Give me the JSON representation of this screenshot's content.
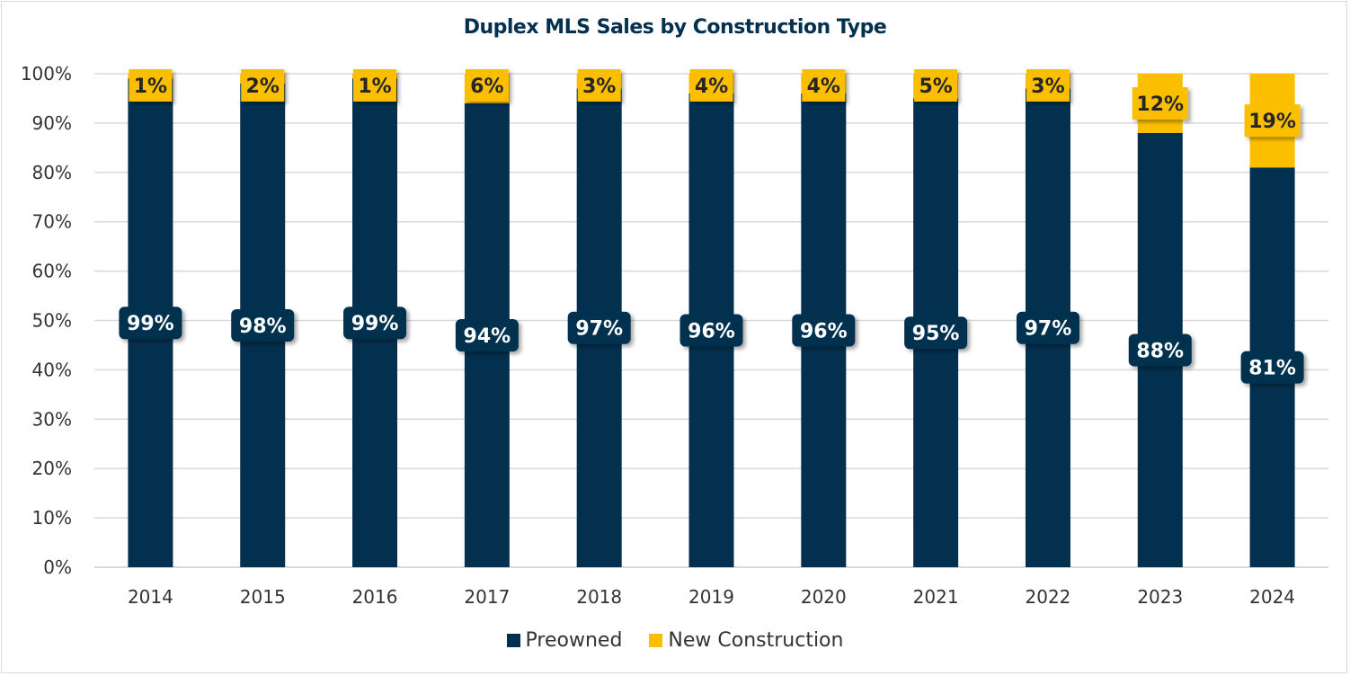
{
  "chart_data": {
    "type": "bar",
    "stacked": true,
    "title": "Duplex MLS Sales by Construction Type",
    "xlabel": "",
    "ylabel": "",
    "ylim": [
      0,
      100
    ],
    "yticks": [
      "0%",
      "10%",
      "20%",
      "30%",
      "40%",
      "50%",
      "60%",
      "70%",
      "80%",
      "90%",
      "100%"
    ],
    "grid": true,
    "legend_position": "bottom",
    "categories": [
      "2014",
      "2015",
      "2016",
      "2017",
      "2018",
      "2019",
      "2020",
      "2021",
      "2022",
      "2023",
      "2024"
    ],
    "series": [
      {
        "name": "Preowned",
        "color": "#03304f",
        "values": [
          99,
          98,
          99,
          94,
          97,
          96,
          96,
          95,
          97,
          88,
          81
        ]
      },
      {
        "name": "New Construction",
        "color": "#fcbf00",
        "values": [
          1,
          2,
          1,
          6,
          3,
          4,
          4,
          5,
          3,
          12,
          19
        ]
      }
    ]
  }
}
